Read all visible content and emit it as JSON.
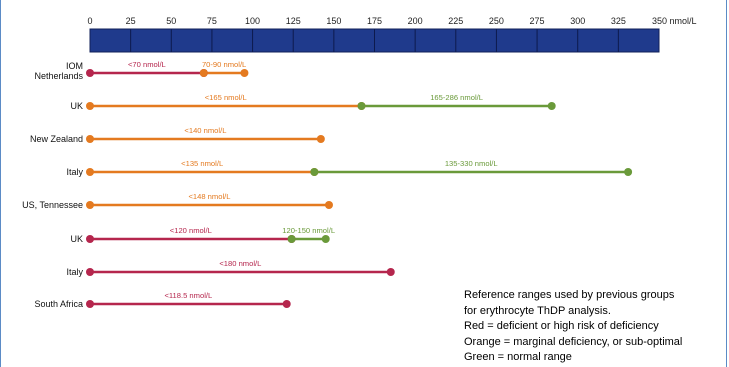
{
  "chart_data": {
    "type": "range-dumbbell",
    "axis": {
      "ticks": [
        0,
        25,
        50,
        75,
        100,
        125,
        150,
        175,
        200,
        225,
        250,
        275,
        300,
        325,
        350
      ],
      "unit": "nmol/L",
      "range": [
        0,
        350
      ]
    },
    "colors": {
      "red": "#b5264d",
      "orange": "#e47a20",
      "green": "#6a9a3a",
      "axis_bar": "#1f3a8c"
    },
    "rows": [
      {
        "label_lines": [
          "IOM",
          "Netherlands"
        ],
        "segments": [
          {
            "start": 0,
            "end": 70,
            "color": "red",
            "label": "<70 nmol/L"
          },
          {
            "start": 70,
            "end": 95,
            "color": "orange",
            "label": "70-90 nmol/L"
          }
        ]
      },
      {
        "label_lines": [
          "UK"
        ],
        "segments": [
          {
            "start": 0,
            "end": 167,
            "color": "orange",
            "label": "<165 nmol/L"
          },
          {
            "start": 167,
            "end": 284,
            "color": "green",
            "label": "165-286 nmol/L"
          }
        ]
      },
      {
        "label_lines": [
          "New Zealand"
        ],
        "segments": [
          {
            "start": 0,
            "end": 142,
            "color": "orange",
            "label": "<140 nmol/L"
          }
        ]
      },
      {
        "label_lines": [
          "Italy"
        ],
        "segments": [
          {
            "start": 0,
            "end": 138,
            "color": "orange",
            "label": "<135 nmol/L"
          },
          {
            "start": 138,
            "end": 331,
            "color": "green",
            "label": "135-330 nmol/L"
          }
        ]
      },
      {
        "label_lines": [
          "US, Tennessee"
        ],
        "segments": [
          {
            "start": 0,
            "end": 147,
            "color": "orange",
            "label": "<148 nmol/L"
          }
        ]
      },
      {
        "label_lines": [
          "UK"
        ],
        "segments": [
          {
            "start": 0,
            "end": 124,
            "color": "red",
            "label": "<120 nmol/L"
          },
          {
            "start": 124,
            "end": 145,
            "color": "green",
            "label": "120-150 nmol/L"
          }
        ]
      },
      {
        "label_lines": [
          "Italy"
        ],
        "segments": [
          {
            "start": 0,
            "end": 185,
            "color": "red",
            "label": "<180 nmol/L"
          }
        ]
      },
      {
        "label_lines": [
          "South Africa"
        ],
        "segments": [
          {
            "start": 0,
            "end": 121,
            "color": "red",
            "label": "<118.5 nmol/L"
          }
        ]
      }
    ]
  },
  "legend_note": {
    "line1": "Reference ranges used by previous groups",
    "line2": "for erythrocyte ThDP analysis.",
    "line3": "Red = deficient or high risk of deficiency",
    "line4": "Orange = marginal deficiency, or sub-optimal",
    "line5": "Green = normal range"
  }
}
